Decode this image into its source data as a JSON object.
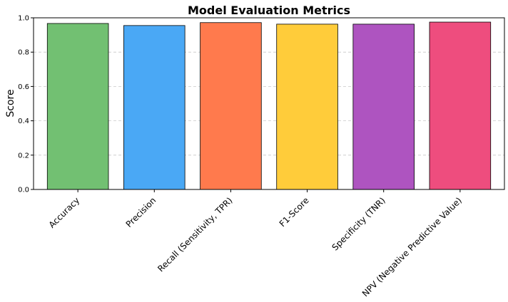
{
  "chart_data": {
    "type": "bar",
    "title": "Model Evaluation Metrics",
    "xlabel": "",
    "ylabel": "Score",
    "ylim": [
      0,
      1.0
    ],
    "yticks": [
      "0.0",
      "0.2",
      "0.4",
      "0.6",
      "0.8",
      "1.0"
    ],
    "grid": "y-dashed",
    "categories": [
      "Accuracy",
      "Precision",
      "Recall (Sensitivity, TPR)",
      "F1-Score",
      "Specificity (TNR)",
      "NPV (Negative Predictive Value)"
    ],
    "values": [
      0.967,
      0.955,
      0.972,
      0.963,
      0.963,
      0.975
    ],
    "colors": [
      "#72c072",
      "#4aa8f5",
      "#ff7a4d",
      "#ffcc3a",
      "#ae54c0",
      "#ee4d7e"
    ]
  }
}
